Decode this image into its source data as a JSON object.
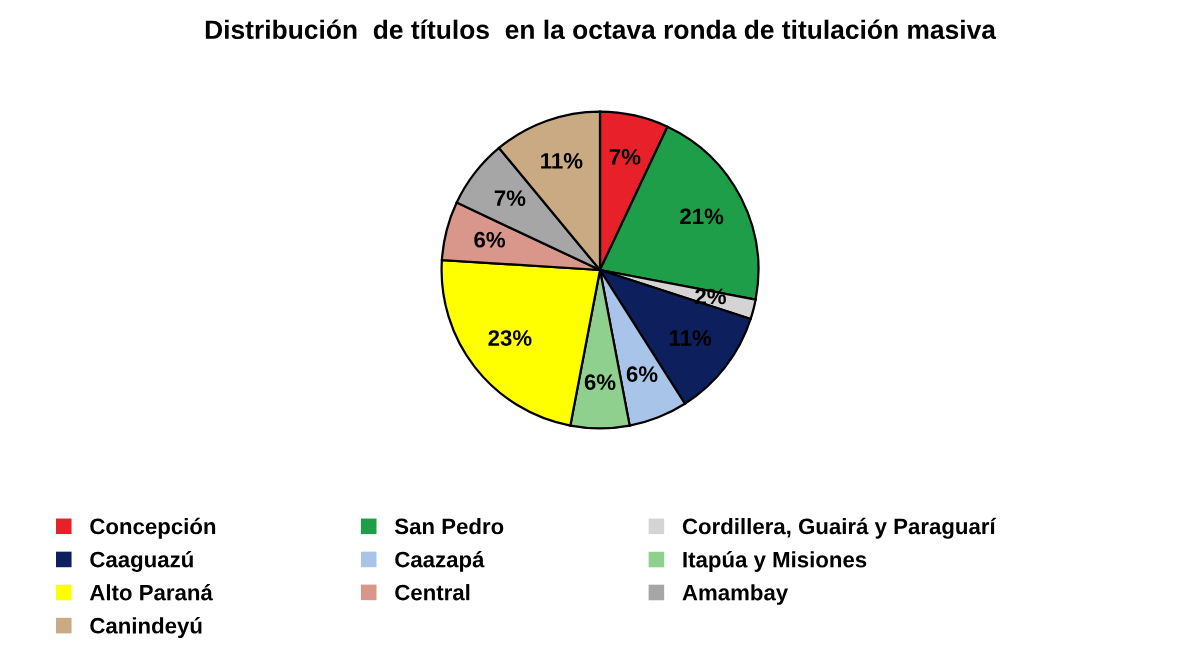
{
  "chart_data": {
    "type": "pie",
    "title": "Distribución  de títulos  en la octava ronda de titulación masiva",
    "categories": [
      "Concepción",
      "San Pedro",
      "Cordillera, Guairá y Paraguarí",
      "Caaguazú",
      "Caazapá",
      "Itapúa y Misiones",
      "Alto Paraná",
      "Central",
      "Amambay",
      "Canindeyú"
    ],
    "values": [
      7,
      21,
      2,
      11,
      6,
      6,
      23,
      6,
      7,
      11
    ],
    "value_labels": [
      "7%",
      "21%",
      "2%",
      "11%",
      "6%",
      "6%",
      "23%",
      "6%",
      "7%",
      "11%"
    ],
    "colors": [
      "#e8202a",
      "#1e9e48",
      "#d4d4d4",
      "#0d1f5c",
      "#a8c4e8",
      "#8fd08f",
      "#ffff00",
      "#d9968a",
      "#a6a6a6",
      "#c9aa82"
    ],
    "legend": "bottom"
  }
}
